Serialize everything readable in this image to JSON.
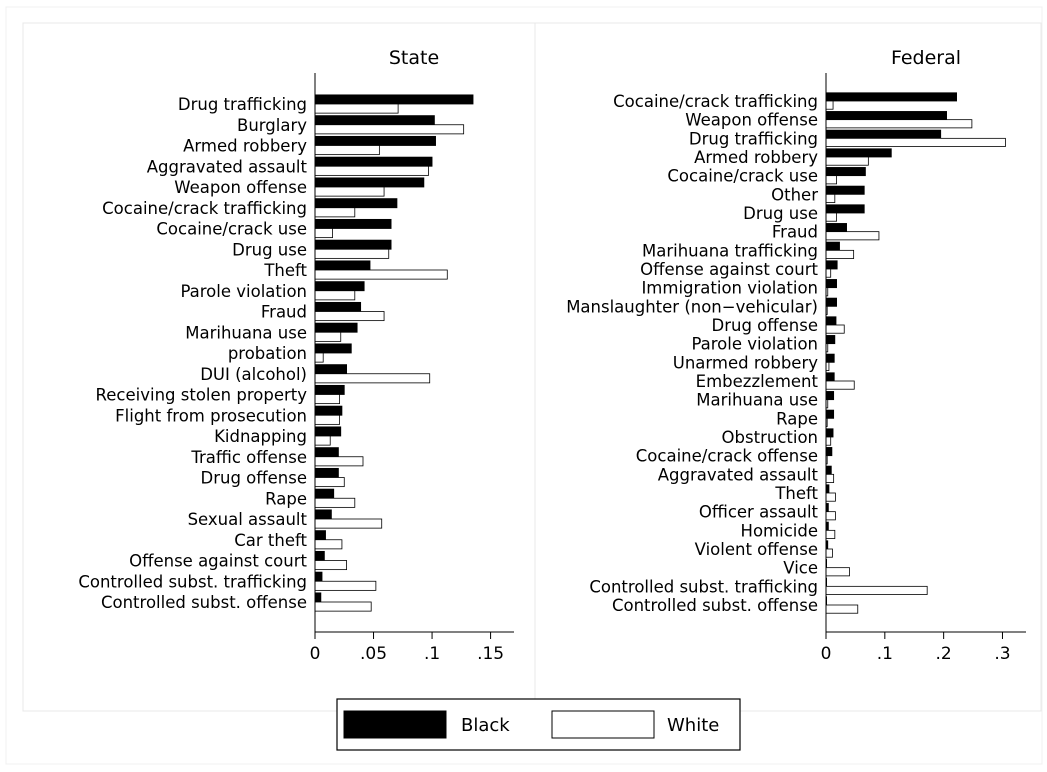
{
  "chart_data": [
    {
      "type": "bar",
      "orientation": "horizontal",
      "title": "State",
      "xlim": [
        0,
        0.17
      ],
      "xticks": [
        {
          "value": 0,
          "label": "0"
        },
        {
          "value": 0.05,
          "label": ".05"
        },
        {
          "value": 0.1,
          "label": ".1"
        },
        {
          "value": 0.15,
          "label": ".15"
        }
      ],
      "categories": [
        "Drug trafficking",
        "Burglary",
        "Armed robbery",
        "Aggravated assault",
        "Weapon offense",
        "Cocaine/crack trafficking",
        "Cocaine/crack use",
        "Drug use",
        "Theft",
        "Parole violation",
        "Fraud",
        "Marihuana use",
        "probation",
        "DUI (alcohol)",
        "Receiving stolen property",
        "Flight from prosecution",
        "Kidnapping",
        "Traffic offense",
        "Drug offense",
        "Rape",
        "Sexual assault",
        "Car theft",
        "Offense against court",
        "Controlled subst. trafficking",
        "Controlled subst. offense"
      ],
      "series": [
        {
          "name": "Black",
          "color": "#000000",
          "values": [
            0.135,
            0.102,
            0.103,
            0.1,
            0.093,
            0.07,
            0.065,
            0.065,
            0.047,
            0.042,
            0.039,
            0.036,
            0.031,
            0.027,
            0.025,
            0.023,
            0.022,
            0.02,
            0.02,
            0.016,
            0.014,
            0.009,
            0.008,
            0.006,
            0.005
          ]
        },
        {
          "name": "White",
          "color": "#ffffff",
          "values": [
            0.071,
            0.127,
            0.055,
            0.097,
            0.059,
            0.034,
            0.015,
            0.063,
            0.113,
            0.034,
            0.059,
            0.022,
            0.007,
            0.098,
            0.021,
            0.021,
            0.013,
            0.041,
            0.025,
            0.034,
            0.057,
            0.023,
            0.027,
            0.052,
            0.048
          ]
        }
      ]
    },
    {
      "type": "bar",
      "orientation": "horizontal",
      "title": "Federal",
      "xlim": [
        0,
        0.34
      ],
      "xticks": [
        {
          "value": 0,
          "label": "0"
        },
        {
          "value": 0.1,
          "label": ".1"
        },
        {
          "value": 0.2,
          "label": ".2"
        },
        {
          "value": 0.3,
          "label": ".3"
        }
      ],
      "categories": [
        "Cocaine/crack trafficking",
        "Weapon offense",
        "Drug trafficking",
        "Armed robbery",
        "Cocaine/crack use",
        "Other",
        "Drug use",
        "Fraud",
        "Marihuana trafficking",
        "Offense against court",
        "Immigration violation",
        "Manslaughter (non−vehicular)",
        "Drug offense",
        "Parole violation",
        "Unarmed robbery",
        "Embezzlement",
        "Marihuana use",
        "Rape",
        "Obstruction",
        "Cocaine/crack offense",
        "Aggravated assault",
        "Theft",
        "Officer assault",
        "Homicide",
        "Violent offense",
        "Vice",
        "Controlled subst. trafficking",
        "Controlled subst. offense"
      ],
      "series": [
        {
          "name": "Black",
          "color": "#000000",
          "values": [
            0.222,
            0.205,
            0.195,
            0.111,
            0.067,
            0.065,
            0.065,
            0.035,
            0.023,
            0.019,
            0.018,
            0.018,
            0.017,
            0.015,
            0.014,
            0.014,
            0.013,
            0.013,
            0.012,
            0.01,
            0.009,
            0.005,
            0.004,
            0.004,
            0.003,
            0.001,
            0.001,
            0.001
          ]
        },
        {
          "name": "White",
          "color": "#ffffff",
          "values": [
            0.012,
            0.248,
            0.305,
            0.072,
            0.018,
            0.015,
            0.018,
            0.09,
            0.047,
            0.008,
            0.003,
            0.002,
            0.031,
            0.003,
            0.005,
            0.048,
            0.003,
            0.002,
            0.008,
            0.002,
            0.013,
            0.016,
            0.016,
            0.015,
            0.011,
            0.04,
            0.172,
            0.054
          ]
        }
      ]
    }
  ],
  "legend": [
    {
      "label": "Black",
      "color": "#000000"
    },
    {
      "label": "White",
      "color": "#ffffff"
    }
  ],
  "legend_position": "bottom"
}
